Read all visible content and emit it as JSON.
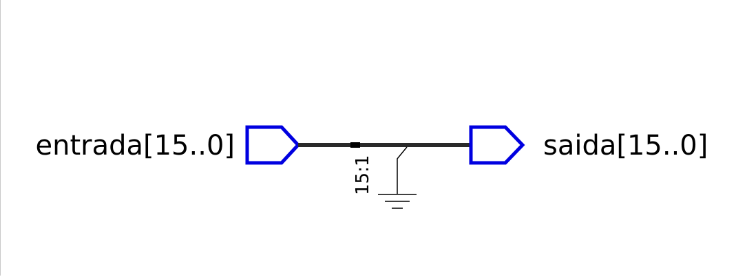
{
  "schematic": {
    "input_port": {
      "name": "entrada[15..0]",
      "kind": "input-pin"
    },
    "output_port": {
      "name": "saida[15..0]",
      "kind": "output-pin"
    },
    "bus_tap": {
      "label": "15:1"
    },
    "ground": {
      "kind": "ground-symbol"
    },
    "colors": {
      "pin": "#0000e0",
      "bus": "#2a2a2a",
      "wire": "#000000",
      "text": "#000000"
    }
  }
}
